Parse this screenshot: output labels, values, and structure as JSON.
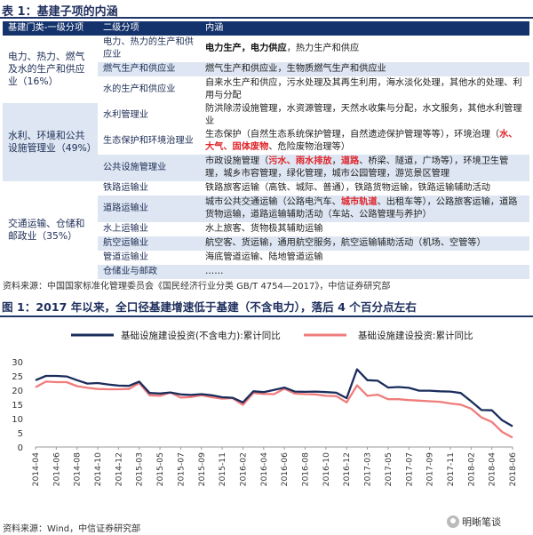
{
  "table": {
    "title_num": "表 1：",
    "title_text": "基建子项的内涵",
    "headers": [
      "基建门类-一级分项",
      "二级分项",
      "内涵"
    ],
    "source": "资料来源：中国国家标准化管理委员会《国民经济行业分类 GB/T 4754—2017》，中信证券研究部",
    "groups": [
      {
        "primary": "电力、热力、燃气及水的生产和供应业（16%）",
        "rows": [
          {
            "sub": "电力、热力的生产和供应业",
            "content": [
              {
                "t": "电力生产，电力供应",
                "s": "bold"
              },
              {
                "t": "，热力生产和供应",
                "s": ""
              }
            ],
            "shade": false
          },
          {
            "sub": "燃气生产和供应业",
            "content": [
              {
                "t": "燃气生产和供应业，生物质燃气生产和供应业",
                "s": ""
              }
            ],
            "shade": true
          },
          {
            "sub": "水的生产和供应业",
            "content": [
              {
                "t": "自来水生产和供应，污水处理及其再生利用，海水淡化处理，其他水的处理、利用与分配",
                "s": ""
              }
            ],
            "shade": false
          }
        ]
      },
      {
        "primary": "水利、环境和公共设施管理业（49%）",
        "rows": [
          {
            "sub": "水利管理业",
            "content": [
              {
                "t": "防洪除涝设施管理，水资源管理，天然水收集与分配，水文服务，其他水利管理业",
                "s": ""
              }
            ],
            "shade": false
          },
          {
            "sub": "生态保护和环境治理业",
            "content": [
              {
                "t": "生态保护（自然生态系统保护管理，自然遗迹保护管理等等），环境治理（",
                "s": ""
              },
              {
                "t": "水、大气、固体废物",
                "s": "red"
              },
              {
                "t": "、危险废物治理等）",
                "s": ""
              }
            ],
            "shade": false
          },
          {
            "sub": "公共设施管理业",
            "content": [
              {
                "t": "市政设施管理（",
                "s": ""
              },
              {
                "t": "污水、雨水排放",
                "s": "red"
              },
              {
                "t": "，",
                "s": ""
              },
              {
                "t": "道路",
                "s": "red"
              },
              {
                "t": "、桥梁、隧道，广场等），环境卫生管理，城乡市容管理，绿化管理，城市公园管理，游览景区管理",
                "s": ""
              }
            ],
            "shade": true
          }
        ]
      },
      {
        "primary": "交通运输、仓储和邮政业（35%）",
        "rows": [
          {
            "sub": "铁路运输业",
            "content": [
              {
                "t": "铁路旅客运输（高铁、城际、普通），铁路货物运输，铁路运输辅助活动",
                "s": ""
              }
            ],
            "shade": false
          },
          {
            "sub": "道路运输业",
            "content": [
              {
                "t": "城市公共交通运输（公路电汽车、",
                "s": ""
              },
              {
                "t": "城市轨道",
                "s": "red"
              },
              {
                "t": "、出租车等），公路旅客运输，道路货物运输，道路运输辅助活动（车站、公路管理与养护）",
                "s": ""
              }
            ],
            "shade": true
          },
          {
            "sub": "水上运输业",
            "content": [
              {
                "t": "水上旅客、货物极其辅助运输",
                "s": ""
              }
            ],
            "shade": false
          },
          {
            "sub": "航空运输业",
            "content": [
              {
                "t": "航空客、货运输，通用航空服务，航空运输辅助活动（机场、空管等）",
                "s": ""
              }
            ],
            "shade": true
          },
          {
            "sub": "管道运输业",
            "content": [
              {
                "t": "海底管道运输、陆地管道运输",
                "s": ""
              }
            ],
            "shade": false
          },
          {
            "sub": "仓储业与邮政",
            "content": [
              {
                "t": "……",
                "s": ""
              }
            ],
            "shade": true
          }
        ]
      }
    ]
  },
  "figure": {
    "title_num": "图 1：",
    "title_text": "2017 年以来，全口径基建增速低于基建（不含电力），落后 4 个百分点左右",
    "source": "资料来源：Wind，中信证券研究部",
    "brand": "明晰笔谈"
  },
  "chart_data": {
    "type": "line",
    "x": [
      "2014-04",
      "2014-05",
      "2014-06",
      "2014-07",
      "2014-08",
      "2014-09",
      "2014-10",
      "2014-11",
      "2014-12",
      "2015-02",
      "2015-03",
      "2015-04",
      "2015-05",
      "2015-06",
      "2015-07",
      "2015-08",
      "2015-09",
      "2015-10",
      "2015-11",
      "2015-12",
      "2016-02",
      "2016-03",
      "2016-04",
      "2016-05",
      "2016-06",
      "2016-07",
      "2016-08",
      "2016-09",
      "2016-10",
      "2016-11",
      "2016-12",
      "2017-02",
      "2017-03",
      "2017-04",
      "2017-05",
      "2017-06",
      "2017-07",
      "2017-08",
      "2017-09",
      "2017-10",
      "2017-11",
      "2017-12",
      "2018-02",
      "2018-03",
      "2018-04",
      "2018-05",
      "2018-06"
    ],
    "xticks": [
      "2014-04",
      "2014-06",
      "2014-08",
      "2014-10",
      "2014-12",
      "2015-03",
      "2015-05",
      "2015-07",
      "2015-09",
      "2015-11",
      "2016-02",
      "2016-04",
      "2016-06",
      "2016-08",
      "2016-10",
      "2016-12",
      "2017-03",
      "2017-05",
      "2017-07",
      "2017-09",
      "2017-11",
      "2018-02",
      "2018-04",
      "2018-06"
    ],
    "series": [
      {
        "name": "基础设施建设投资(不含电力):累计同比",
        "color": "#1b2d5c",
        "values": [
          23.5,
          25,
          25,
          24.8,
          23.5,
          22.3,
          22.5,
          22,
          21.6,
          21.5,
          23,
          19,
          18.8,
          19.2,
          18.5,
          18.3,
          18.6,
          18.2,
          17.5,
          17.3,
          15.7,
          19.6,
          19.3,
          20.1,
          20.9,
          19.5,
          19.4,
          19.5,
          19.3,
          19.1,
          17.2,
          27.3,
          23.5,
          23.3,
          20.9,
          21.1,
          20.8,
          19.8,
          19.8,
          19.6,
          19.5,
          19,
          16.1,
          13,
          12.9,
          9.4,
          7.3
        ]
      },
      {
        "name": "基础设施建设投资:累计同比",
        "color": "#f07c7c",
        "values": [
          21,
          23,
          22.8,
          22.8,
          21.4,
          20.8,
          20.4,
          20.3,
          20.3,
          20.4,
          22.5,
          18.2,
          18,
          19.2,
          17.4,
          17.6,
          18.2,
          17.5,
          17,
          17.2,
          14.8,
          19,
          18.7,
          18.6,
          20.5,
          18.8,
          18.6,
          18.5,
          18,
          17.9,
          15.7,
          21.7,
          18,
          18.4,
          16.8,
          16.8,
          16.5,
          16.3,
          16.1,
          15.9,
          15.3,
          14.9,
          13.5,
          10.4,
          8.8,
          5.3,
          3.3
        ]
      }
    ],
    "ylim": [
      0,
      30
    ],
    "yticks": [
      0,
      5,
      10,
      15,
      20,
      25,
      30
    ],
    "grid": false,
    "legend": "top"
  }
}
